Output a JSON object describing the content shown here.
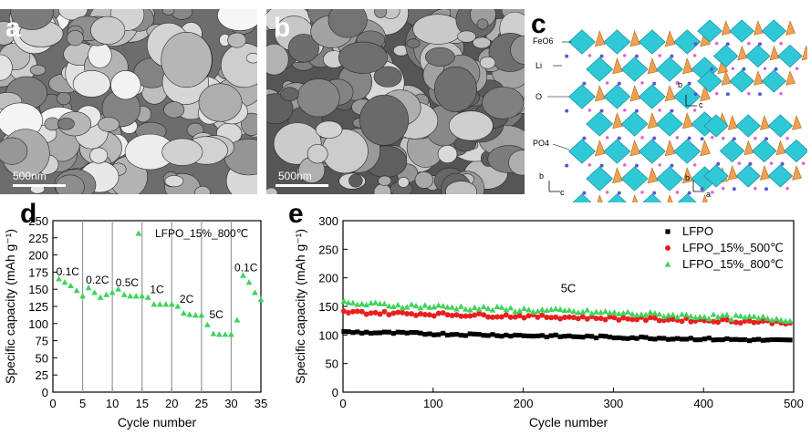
{
  "panels": {
    "a": {
      "letter": "a",
      "scale_text": "500nm"
    },
    "b": {
      "letter": "b",
      "scale_text": "500nm"
    },
    "c": {
      "letter": "c",
      "labels": {
        "feo6": "FeO6",
        "li": "Li",
        "o": "O",
        "po4": "PO4"
      },
      "axes_left": {
        "up": "b",
        "right": "c"
      },
      "axes_right_top": {
        "up": "b",
        "right": "c"
      },
      "axes_right_bottom": {
        "up": "b",
        "right": "a"
      }
    },
    "d": {
      "letter": "d"
    },
    "e": {
      "letter": "e"
    }
  },
  "colors": {
    "green": "#3fd35a",
    "red": "#e8201f",
    "black": "#000000",
    "cyan": "#2fc8d6",
    "orange": "#f0a050"
  },
  "chart_data": [
    {
      "id": "d",
      "type": "scatter",
      "xlabel": "Cycle number",
      "ylabel": "Specific capacity (mAh g⁻¹)",
      "xlim": [
        0,
        35
      ],
      "ylim": [
        0,
        250
      ],
      "xticks": [
        0,
        5,
        10,
        15,
        20,
        25,
        30,
        35
      ],
      "yticks": [
        0,
        25,
        50,
        75,
        100,
        125,
        150,
        175,
        200,
        225,
        250
      ],
      "vlines": [
        5,
        10,
        15,
        20,
        25,
        30
      ],
      "legend": "top-right",
      "series": [
        {
          "name": "LFPO_15%_800℃",
          "marker": "triangle",
          "color": "#3fd35a",
          "x": [
            1,
            2,
            3,
            4,
            5,
            6,
            7,
            8,
            9,
            10,
            11,
            12,
            13,
            14,
            15,
            16,
            17,
            18,
            19,
            20,
            21,
            22,
            23,
            24,
            25,
            26,
            27,
            28,
            29,
            30,
            31,
            32,
            33,
            34,
            35
          ],
          "y": [
            165,
            160,
            155,
            148,
            140,
            152,
            145,
            138,
            142,
            145,
            150,
            142,
            140,
            140,
            140,
            138,
            128,
            128,
            128,
            128,
            125,
            115,
            113,
            112,
            112,
            98,
            85,
            84,
            84,
            84,
            105,
            170,
            160,
            145,
            135
          ]
        }
      ],
      "annotations": [
        {
          "text": "0.1C",
          "x": 2.5,
          "y": 170
        },
        {
          "text": "0.2C",
          "x": 7.5,
          "y": 158
        },
        {
          "text": "0.5C",
          "x": 12.5,
          "y": 154
        },
        {
          "text": "1C",
          "x": 17.5,
          "y": 144
        },
        {
          "text": "2C",
          "x": 22.5,
          "y": 130
        },
        {
          "text": "5C",
          "x": 27.5,
          "y": 108
        },
        {
          "text": "0.1C",
          "x": 32.5,
          "y": 176
        }
      ]
    },
    {
      "id": "e",
      "type": "scatter",
      "xlabel": "Cycle number",
      "ylabel": "Specific capacity (mAh g⁻¹)",
      "xlim": [
        0,
        500
      ],
      "ylim": [
        0,
        300
      ],
      "xticks": [
        0,
        100,
        200,
        300,
        400,
        500
      ],
      "yticks": [
        0,
        50,
        100,
        150,
        200,
        250,
        300
      ],
      "legend": "top-right",
      "annotations": [
        {
          "text": "5C",
          "x": 250,
          "y": 175
        }
      ],
      "series": [
        {
          "name": "LFPO",
          "marker": "square",
          "color": "#000000",
          "start": 105,
          "end": 90,
          "noise": 2
        },
        {
          "name": "LFPO_15%_500℃",
          "marker": "circle",
          "color": "#e8201f",
          "start": 140,
          "end": 122,
          "noise": 3
        },
        {
          "name": "LFPO_15%_800℃",
          "marker": "triangle",
          "color": "#3fd35a",
          "start": 155,
          "end": 127,
          "noise": 4
        }
      ]
    }
  ]
}
